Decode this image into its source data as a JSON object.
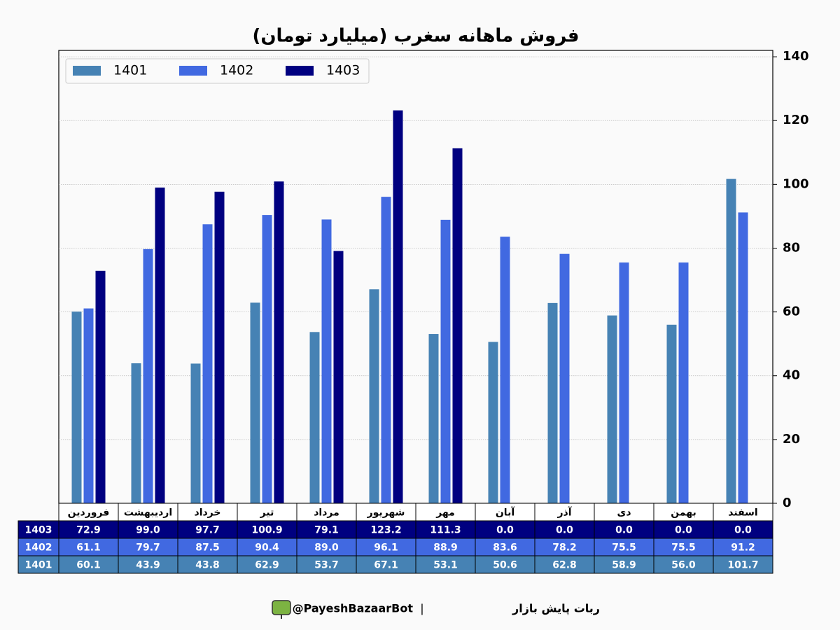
{
  "chart_data": {
    "type": "bar",
    "title": "فروش ماهانه سغرب (میلیارد تومان)",
    "categories": [
      "فروردین",
      "اردیبهشت",
      "خرداد",
      "تیر",
      "مرداد",
      "شهریور",
      "مهر",
      "آبان",
      "آذر",
      "دی",
      "بهمن",
      "اسفند"
    ],
    "series": [
      {
        "name": "1401",
        "color": "#4682b4",
        "values": [
          60.1,
          43.9,
          43.8,
          62.9,
          53.7,
          67.1,
          53.1,
          50.6,
          62.8,
          58.9,
          56.0,
          101.7
        ],
        "value_labels": [
          "60.1",
          "43.9",
          "43.8",
          "62.9",
          "53.7",
          "67.1",
          "53.1",
          "50.6",
          "62.8",
          "58.9",
          "56.0",
          "101.7"
        ]
      },
      {
        "name": "1402",
        "color": "#4169e1",
        "values": [
          61.1,
          79.7,
          87.5,
          90.4,
          89.0,
          96.1,
          88.9,
          83.6,
          78.2,
          75.5,
          75.5,
          91.2
        ],
        "value_labels": [
          "61.1",
          "79.7",
          "87.5",
          "90.4",
          "89.0",
          "96.1",
          "88.9",
          "83.6",
          "78.2",
          "75.5",
          "75.5",
          "91.2"
        ]
      },
      {
        "name": "1403",
        "color": "#000080",
        "values": [
          72.9,
          99.0,
          97.7,
          100.9,
          79.1,
          123.2,
          111.3,
          0.0,
          0.0,
          0.0,
          0.0,
          0.0
        ],
        "value_labels": [
          "72.9",
          "99.0",
          "97.7",
          "100.9",
          "79.1",
          "123.2",
          "111.3",
          "0.0",
          "0.0",
          "0.0",
          "0.0",
          "0.0"
        ]
      }
    ],
    "ylim": [
      0,
      142
    ],
    "yticks": [
      0,
      20,
      40,
      60,
      80,
      100,
      120,
      140
    ],
    "grid": true,
    "legend": "upper-left"
  },
  "footer": {
    "bot_name": "ربات پایش بازار",
    "handle": "@PayeshBazaarBot"
  }
}
